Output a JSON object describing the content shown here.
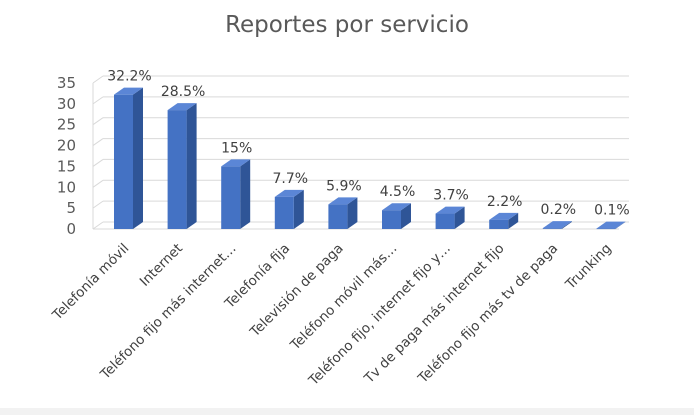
{
  "chart_data": {
    "type": "bar",
    "title": "Reportes por servicio",
    "categories": [
      "Telefonía móvil",
      "Internet",
      "Teléfono fijo más internet…",
      "Telefonía fija",
      "Televisión de paga",
      "Teléfono móvil más…",
      "Teléfono fijo, internet fijo y…",
      "Tv de paga más internet fijo",
      "Teléfono fijo más tv de paga",
      "Trunking"
    ],
    "values": [
      32.2,
      28.5,
      15,
      7.7,
      5.9,
      4.5,
      3.7,
      2.2,
      0.2,
      0.1
    ],
    "data_labels": [
      "32.2%",
      "28.5%",
      "15%",
      "7.7%",
      "5.9%",
      "4.5%",
      "3.7%",
      "2.2%",
      "0.2%",
      "0.1%"
    ],
    "yticks": [
      "0",
      "5",
      "10",
      "15",
      "20",
      "25",
      "30",
      "35"
    ],
    "ylim": [
      0,
      35
    ],
    "grid": true,
    "legend": "none",
    "colors": {
      "bar_front": "#4472c4",
      "bar_side": "#2f5597",
      "bar_top": "#5b86d6",
      "grid": "#d9d9d9"
    }
  }
}
